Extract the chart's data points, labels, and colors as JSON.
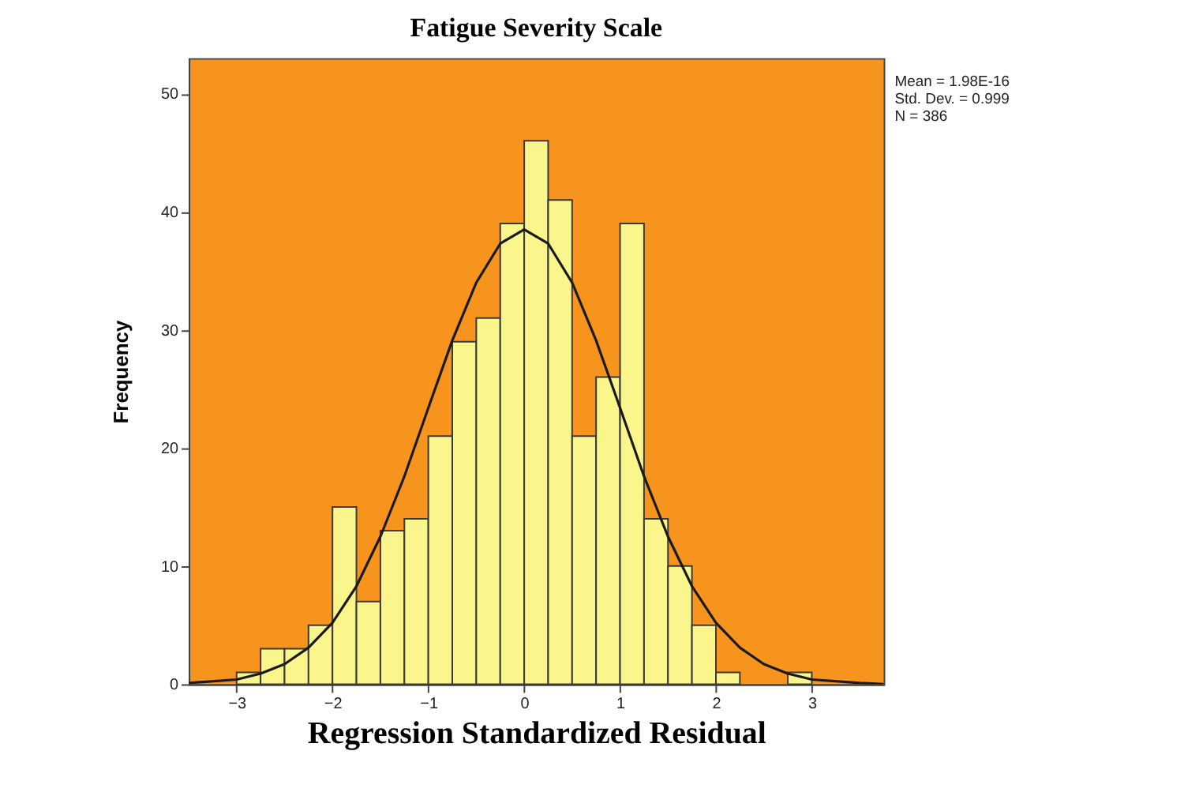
{
  "chart_data": {
    "type": "histogram",
    "title": "Fatigue Severity Scale",
    "xlabel": "Regression Standardized Residual",
    "ylabel": "Frequency",
    "bins": [
      -3,
      -2.75,
      -2.5,
      -2.25,
      -2,
      -1.75,
      -1.5,
      -1.25,
      -1,
      -0.75,
      -0.5,
      -0.25,
      0,
      0.25,
      0.5,
      0.75,
      1,
      1.25,
      1.5,
      1.75,
      2,
      2.25,
      2.5,
      2.75,
      3
    ],
    "values": [
      1,
      3,
      3,
      5,
      15,
      7,
      13,
      14,
      21,
      29,
      31,
      39,
      46,
      41,
      21,
      26,
      39,
      14,
      10,
      5,
      1,
      0,
      0,
      1
    ],
    "color": "#fbf68c",
    "series": [
      {
        "type": "line",
        "color": "#1a1a1a",
        "x": [
          -3.5,
          -3,
          -2.75,
          -2.5,
          -2.25,
          -2,
          -1.75,
          -1.5,
          -1.25,
          -1,
          -0.75,
          -0.5,
          -0.25,
          0,
          0.25,
          0.5,
          0.75,
          1,
          1.25,
          1.5,
          1.75,
          2,
          2.25,
          2.5,
          2.75,
          3,
          3.5,
          3.75
        ],
        "values": [
          0.1,
          0.4,
          0.9,
          1.7,
          3.1,
          5.2,
          8.3,
          12.5,
          17.6,
          23.4,
          29.1,
          34.0,
          37.3,
          38.5,
          37.3,
          34.0,
          29.1,
          23.4,
          17.6,
          12.5,
          8.3,
          5.2,
          3.1,
          1.7,
          0.9,
          0.4,
          0.1,
          0.0
        ]
      }
    ],
    "xlim": [
      -3.5,
      3.75
    ],
    "ylim": [
      0,
      53
    ],
    "xticks": [
      -3,
      -2,
      -1,
      0,
      1,
      2,
      3
    ],
    "yticks": [
      0,
      10,
      20,
      30,
      40,
      50
    ],
    "grid": false,
    "annotations": [
      "Mean = 1.98E-16",
      "Std. Dev. = 0.999",
      "N = 386"
    ]
  }
}
